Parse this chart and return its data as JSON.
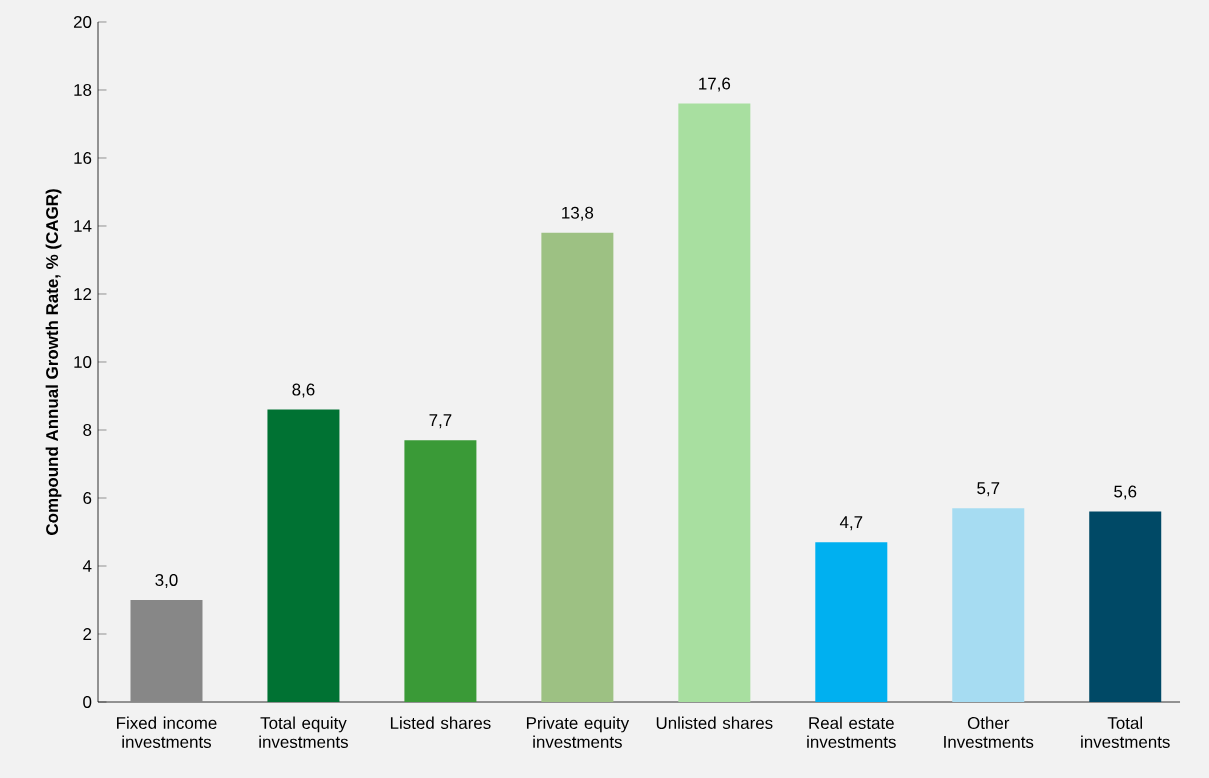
{
  "chart_data": {
    "type": "bar",
    "ylabel": "Compound Annual Growth Rate, % (CAGR)",
    "categories": [
      "Fixed income investments",
      "Total equity investments",
      "Listed shares",
      "Private equity investments",
      "Unlisted shares",
      "Real estate investments",
      "Other Investments",
      "Total investments"
    ],
    "values": [
      3.0,
      8.6,
      7.7,
      13.8,
      17.6,
      4.7,
      5.7,
      5.6
    ],
    "value_labels": [
      "3,0",
      "8,6",
      "7,7",
      "13,8",
      "17,6",
      "4,7",
      "5,7",
      "5,6"
    ],
    "colors": [
      "#878787",
      "#007233",
      "#3a9a37",
      "#9dc183",
      "#a8dfa0",
      "#00b0f0",
      "#a6dcf2",
      "#004966"
    ],
    "ylim": [
      0,
      20
    ],
    "yticks": [
      0,
      2,
      4,
      6,
      8,
      10,
      12,
      14,
      16,
      18,
      20
    ],
    "grid": false
  }
}
